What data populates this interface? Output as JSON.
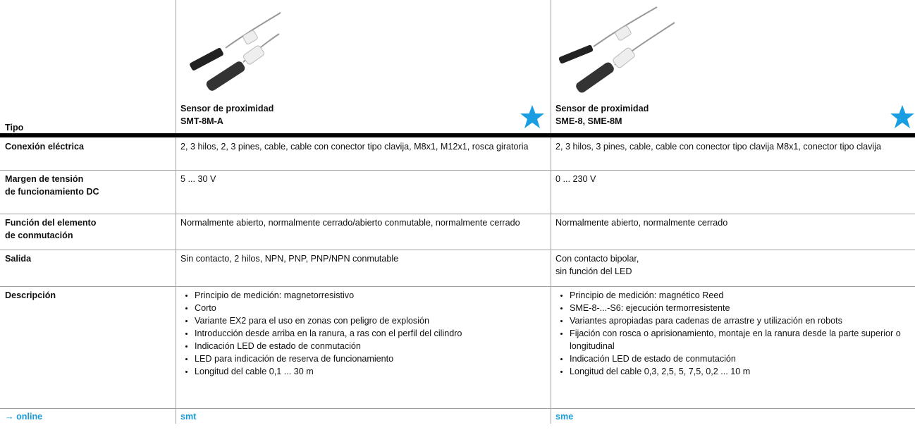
{
  "table": {
    "header": {
      "label": "Tipo",
      "products": [
        {
          "title": "Sensor de proximidad",
          "model": "SMT-8M-A"
        },
        {
          "title": "Sensor de proximidad",
          "model": "SME-8, SME-8M"
        }
      ]
    },
    "rows": [
      {
        "label": [
          "Conexión eléctrica"
        ],
        "cells": [
          [
            "2, 3 hilos, 2, 3 pines, cable, cable con conector tipo clavija, M8x1, M12x1, rosca giratoria"
          ],
          [
            "2, 3 hilos, 3 pines, cable, cable con conector tipo clavija M8x1, conector tipo clavija"
          ]
        ]
      },
      {
        "label": [
          "Margen de tensión",
          "de funcionamiento DC"
        ],
        "cells": [
          [
            "5 ... 30 V"
          ],
          [
            "0 ... 230 V"
          ]
        ]
      },
      {
        "label": [
          "Función del elemento",
          "de conmutación"
        ],
        "cells": [
          [
            "Normalmente abierto, normalmente cerrado/abierto conmutable, normalmente cerrado"
          ],
          [
            "Normalmente abierto, normalmente cerrado"
          ]
        ]
      },
      {
        "label": [
          "Salida"
        ],
        "cells": [
          [
            "Sin contacto, 2 hilos, NPN, PNP, PNP/NPN conmutable"
          ],
          [
            "Con contacto bipolar,",
            "sin función del LED"
          ]
        ]
      },
      {
        "label": [
          "Descripción"
        ],
        "bullets": [
          [
            "Principio de medición: magnetorresistivo",
            "Corto",
            "Variante EX2 para el uso en zonas con peligro de explosión",
            "Introducción desde arriba en la ranura, a ras con el perfil del cilindro",
            "Indicación LED de estado de conmutación",
            "LED para indicación de reserva de funcionamiento",
            "Longitud del cable 0,1 ... 30 m"
          ],
          [
            "Principio de medición: magnético Reed",
            "SME-8-...-S6: ejecución termorresistente",
            "Variantes apropiadas para cadenas de arrastre y utilización en robots",
            "Fijación con rosca o aprisionamiento, montaje en la ranura desde la parte superior o longitudinal",
            "Indicación LED de estado de conmutación",
            "Longitud del cable 0,3, 2,5, 5, 7,5, 0,2 ... 10 m"
          ]
        ]
      }
    ],
    "footer": {
      "label": "→ online",
      "links": [
        "smt",
        "sme"
      ]
    }
  }
}
